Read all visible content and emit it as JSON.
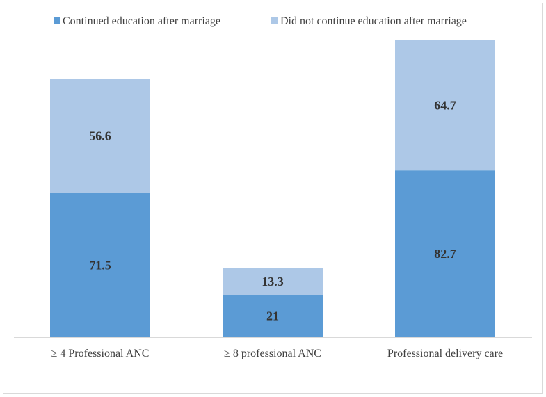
{
  "chart_data": {
    "type": "bar",
    "stacked": true,
    "categories": [
      "≥ 4 Professional ANC",
      "≥ 8 professional ANC",
      "Professional delivery care"
    ],
    "series": [
      {
        "name": "Continued education after marriage",
        "values": [
          71.5,
          21,
          82.7
        ],
        "color": "#5b9bd5"
      },
      {
        "name": "Did not continue education after marriage",
        "values": [
          56.6,
          13.3,
          64.7
        ],
        "color": "#adc8e7"
      }
    ],
    "legend_position": "top",
    "grid": false,
    "ylim": [
      0,
      150
    ],
    "baseline_color": "#d9d9d9"
  }
}
